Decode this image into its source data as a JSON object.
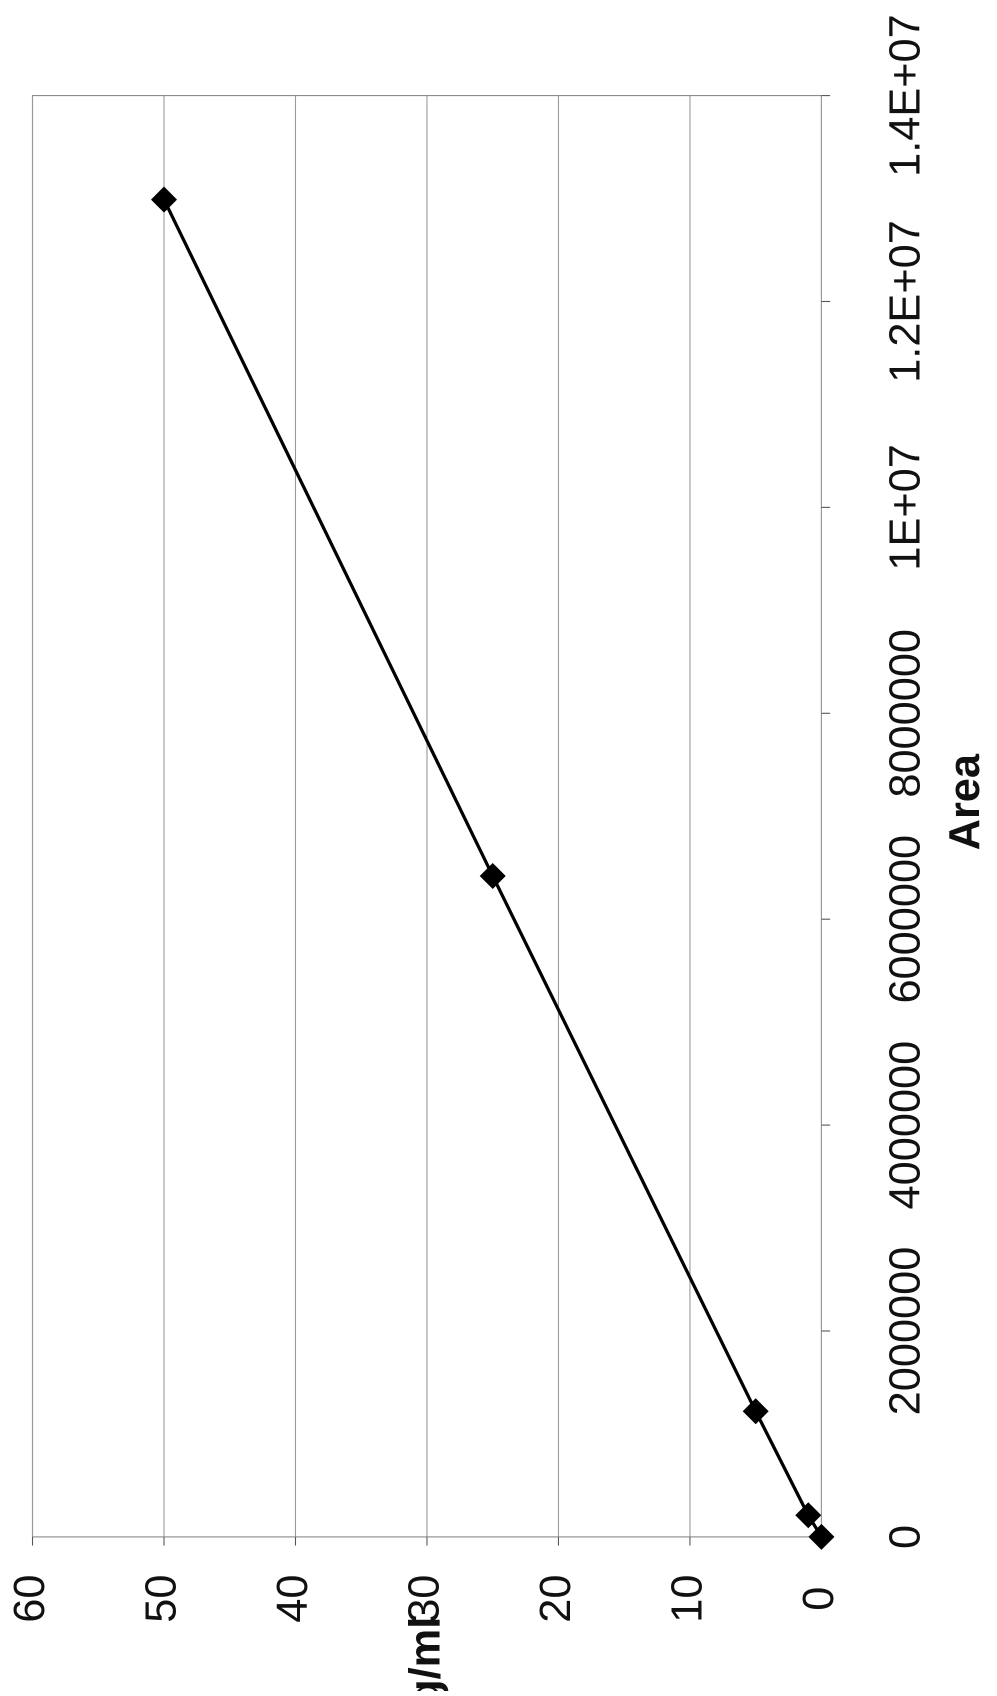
{
  "chart_data": {
    "type": "scatter-line",
    "x_label": "Area",
    "y_label": "ng/ml",
    "x": [
      0,
      210000,
      1220000,
      6420000,
      12990000
    ],
    "series": [
      {
        "color": "#000000",
        "values": [
          0,
          1,
          5,
          25,
          50
        ]
      }
    ],
    "xlim": [
      0,
      14000000
    ],
    "xticks": [
      0,
      {
        "value": 2000000,
        "label": "2000000"
      },
      {
        "value": 4000000,
        "label": "4000000"
      },
      {
        "value": 6000000,
        "label": "6000000"
      },
      {
        "value": 8000000,
        "label": "8000000"
      },
      {
        "value": 10000000,
        "label": "1E+07"
      },
      {
        "value": 12000000,
        "label": "1.2E+07"
      },
      {
        "value": 14000000,
        "label": "1.4E+07"
      }
    ],
    "ylim": [
      0,
      60
    ],
    "yticks": [
      0,
      10,
      20,
      30,
      40,
      50,
      60
    ],
    "grid": true
  }
}
